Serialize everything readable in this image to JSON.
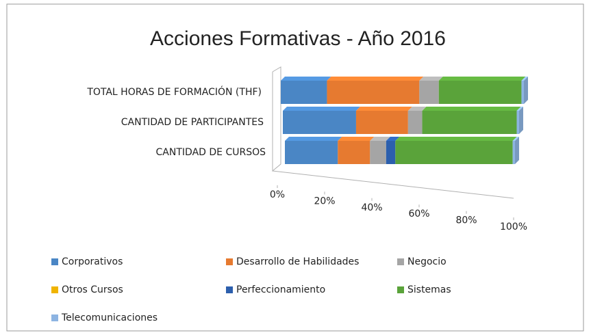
{
  "chart_data": {
    "type": "stacked_bar_horizontal_100",
    "title": "Acciones Formativas - Año 2016",
    "categories": [
      "TOTAL HORAS DE FORMACIÓN (THF)",
      "CANTIDAD DE PARTICIPANTES",
      "CANTIDAD DE CURSOS"
    ],
    "series": [
      {
        "name": "Corporativos",
        "color": "#4a86c5",
        "values": [
          19,
          31,
          23
        ]
      },
      {
        "name": "Desarrollo de Habilidades",
        "color": "#e67a30",
        "values": [
          38,
          22,
          14
        ]
      },
      {
        "name": "Negocio",
        "color": "#a5a5a5",
        "values": [
          8,
          6,
          7
        ]
      },
      {
        "name": "Otros Cursos",
        "color": "#f0b400",
        "values": [
          0,
          0,
          0
        ]
      },
      {
        "name": "Perfeccionamiento",
        "color": "#2c5fad",
        "values": [
          0,
          0,
          4
        ]
      },
      {
        "name": "Sistemas",
        "color": "#5aa33a",
        "values": [
          34,
          40,
          51
        ]
      },
      {
        "name": "Telecomunicaciones",
        "color": "#8db4e2",
        "values": [
          1,
          1,
          1
        ]
      }
    ],
    "xlim": [
      0,
      100
    ],
    "xticks": [
      {
        "value": 0,
        "label": "0%"
      },
      {
        "value": 20,
        "label": "20%"
      },
      {
        "value": 40,
        "label": "40%"
      },
      {
        "value": 60,
        "label": "60%"
      },
      {
        "value": 80,
        "label": "80%"
      },
      {
        "value": 100,
        "label": "100%"
      }
    ],
    "legend": "bottom"
  }
}
